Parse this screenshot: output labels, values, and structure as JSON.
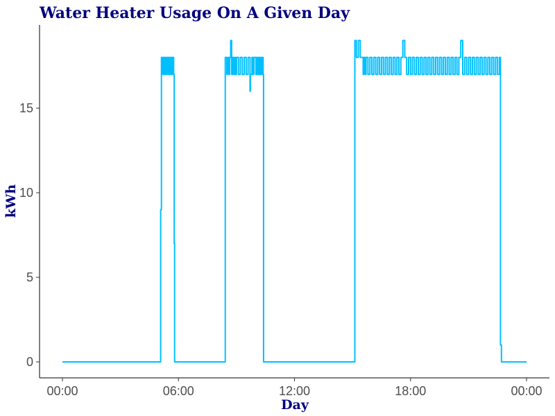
{
  "chart_data": {
    "type": "line",
    "title": "Water Heater Usage On A Given Day",
    "xlabel": "Day",
    "ylabel": "kWh",
    "xlim": [
      0,
      24
    ],
    "ylim": [
      -0.8,
      19.5
    ],
    "x_ticks": [
      {
        "value": 0,
        "label": "00:00"
      },
      {
        "value": 6,
        "label": "06:00"
      },
      {
        "value": 12,
        "label": "12:00"
      },
      {
        "value": 18,
        "label": "18:00"
      },
      {
        "value": 24,
        "label": "00:00"
      }
    ],
    "y_ticks": [
      {
        "value": 0,
        "label": "0"
      },
      {
        "value": 5,
        "label": "5"
      },
      {
        "value": 10,
        "label": "10"
      },
      {
        "value": 15,
        "label": "15"
      }
    ],
    "grid": false,
    "legend": "none",
    "series": [
      {
        "color": "#00bfff",
        "x": [
          0,
          5.05,
          5.08,
          5.12,
          5.15,
          5.2,
          5.25,
          5.3,
          5.35,
          5.4,
          5.45,
          5.5,
          5.55,
          5.6,
          5.65,
          5.7,
          5.75,
          5.78,
          5.8,
          5.82,
          8.4,
          8.42,
          8.5,
          8.55,
          8.6,
          8.65,
          8.7,
          8.75,
          8.8,
          8.85,
          8.9,
          8.95,
          9.0,
          9.1,
          9.2,
          9.3,
          9.4,
          9.5,
          9.6,
          9.7,
          9.72,
          9.8,
          9.85,
          9.9,
          10.0,
          10.05,
          10.1,
          10.15,
          10.2,
          10.25,
          10.3,
          10.35,
          10.38,
          10.4,
          15.1,
          15.12,
          15.2,
          15.3,
          15.4,
          15.5,
          15.55,
          15.6,
          15.65,
          15.7,
          15.8,
          15.9,
          16.0,
          16.1,
          16.2,
          16.3,
          16.4,
          16.5,
          16.6,
          16.7,
          16.8,
          16.9,
          17.0,
          17.1,
          17.2,
          17.3,
          17.4,
          17.5,
          17.6,
          17.7,
          17.8,
          17.9,
          18.0,
          18.1,
          18.2,
          18.3,
          18.4,
          18.5,
          18.6,
          18.7,
          18.8,
          18.9,
          19.0,
          19.1,
          19.2,
          19.3,
          19.4,
          19.5,
          19.6,
          19.7,
          19.8,
          19.9,
          20.0,
          20.1,
          20.2,
          20.3,
          20.4,
          20.5,
          20.6,
          20.7,
          20.8,
          20.9,
          21.0,
          21.1,
          21.2,
          21.3,
          21.4,
          21.5,
          21.6,
          21.7,
          21.8,
          21.9,
          22.0,
          22.1,
          22.2,
          22.3,
          22.4,
          22.5,
          22.6,
          22.65,
          22.7,
          24.0
        ],
        "y": [
          0,
          0,
          9,
          18,
          17,
          18,
          17,
          18,
          17,
          18,
          17,
          18,
          17,
          18,
          17,
          18,
          17,
          7,
          0,
          0,
          0,
          18,
          17,
          18,
          17,
          18,
          19,
          17,
          18,
          17,
          18,
          17,
          18,
          17,
          18,
          17,
          18,
          17,
          18,
          16,
          17,
          18,
          17,
          18,
          17,
          18,
          17,
          18,
          17,
          18,
          17,
          18,
          17,
          0,
          0,
          19,
          18,
          19,
          18,
          18,
          17,
          18,
          17,
          18,
          17,
          18,
          17,
          18,
          17,
          18,
          17,
          18,
          17,
          18,
          17,
          18,
          17,
          18,
          17,
          18,
          17,
          18,
          19,
          18,
          17,
          18,
          17,
          18,
          17,
          18,
          17,
          18,
          17,
          18,
          17,
          18,
          17,
          18,
          17,
          18,
          17,
          18,
          17,
          18,
          17,
          18,
          17,
          18,
          17,
          18,
          17,
          18,
          19,
          17,
          18,
          17,
          18,
          17,
          18,
          17,
          18,
          17,
          18,
          17,
          18,
          17,
          18,
          17,
          18,
          17,
          18,
          17,
          18,
          1,
          0,
          0
        ]
      }
    ]
  }
}
